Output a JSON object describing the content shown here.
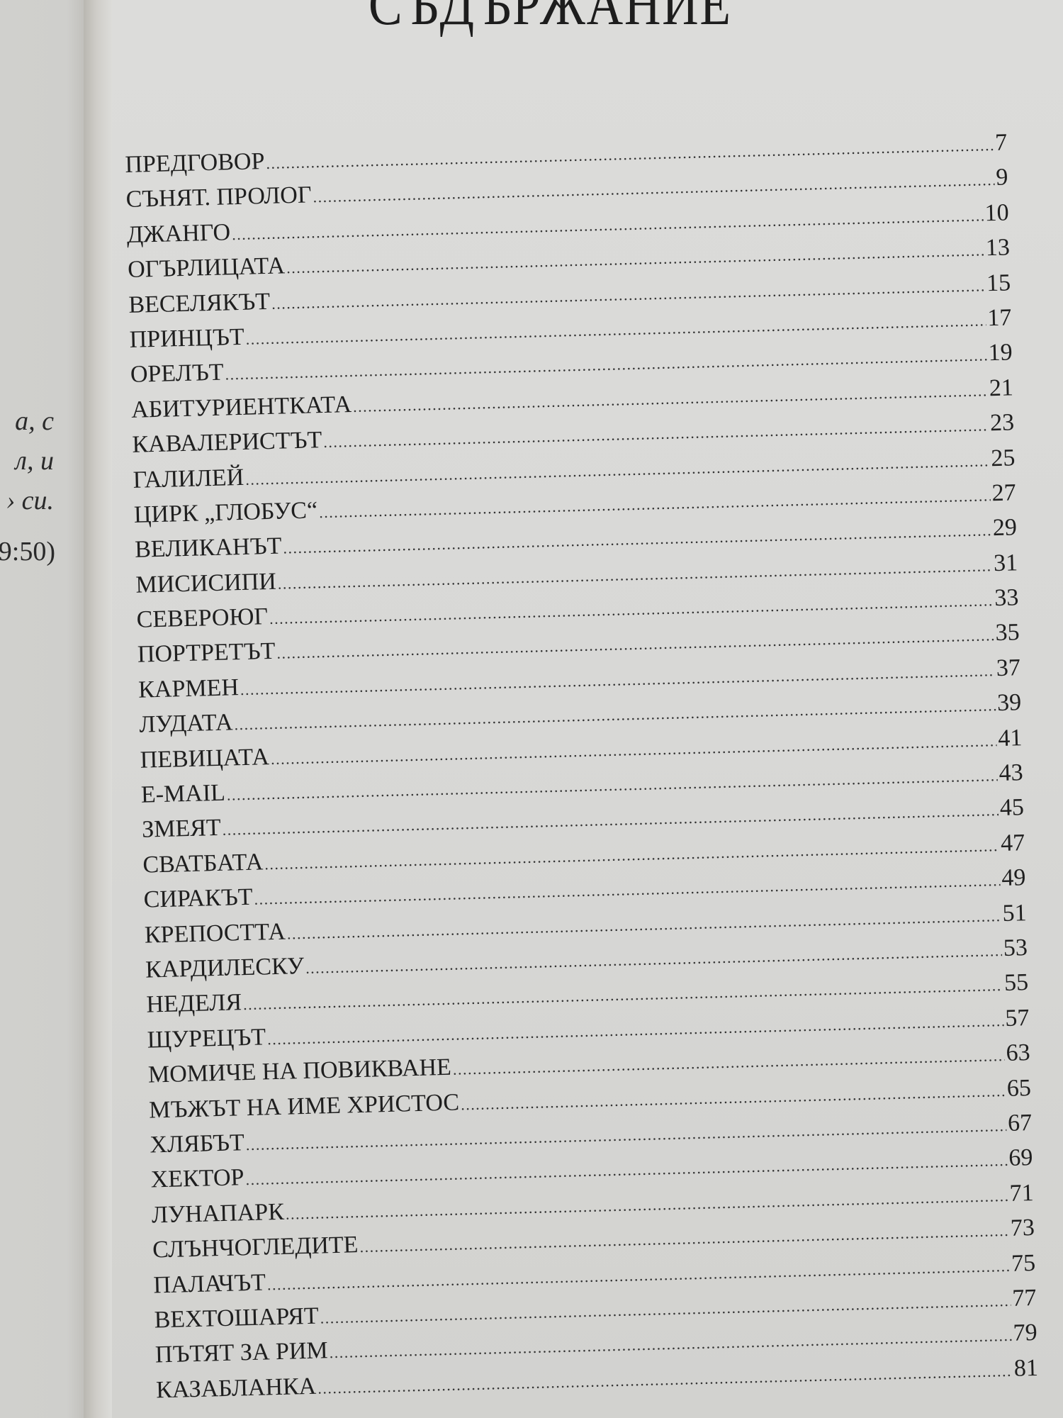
{
  "left_page": {
    "fragments": [
      "а, с",
      "л, и",
      "› си.",
      "9:50)"
    ]
  },
  "title": "СЪДЪРЖАНИЕ",
  "toc": [
    {
      "title": "ПРЕДГОВОР",
      "page": "7"
    },
    {
      "title": "СЪНЯТ. ПРОЛОГ",
      "page": "9"
    },
    {
      "title": "ДЖАНГО",
      "page": "10"
    },
    {
      "title": "ОГЪРЛИЦАТА",
      "page": "13"
    },
    {
      "title": "ВЕСЕЛЯКЪТ",
      "page": "15"
    },
    {
      "title": "ПРИНЦЪТ",
      "page": "17"
    },
    {
      "title": "ОРЕЛЪТ",
      "page": "19"
    },
    {
      "title": "АБИТУРИЕНТКАТА",
      "page": "21"
    },
    {
      "title": "КАВАЛЕРИСТЪТ",
      "page": "23"
    },
    {
      "title": "ГАЛИЛЕЙ",
      "page": "25"
    },
    {
      "title": "ЦИРК „ГЛОБУС“",
      "page": "27"
    },
    {
      "title": "ВЕЛИКАНЪТ",
      "page": "29"
    },
    {
      "title": "МИСИСИПИ",
      "page": "31"
    },
    {
      "title": "СЕВЕРОЮГ",
      "page": "33"
    },
    {
      "title": "ПОРТРЕТЪТ",
      "page": "35"
    },
    {
      "title": "КАРМЕН",
      "page": "37"
    },
    {
      "title": "ЛУДАТА",
      "page": "39"
    },
    {
      "title": "ПЕВИЦАТА",
      "page": "41"
    },
    {
      "title": "E-MAIL",
      "page": "43"
    },
    {
      "title": "ЗМЕЯТ",
      "page": "45"
    },
    {
      "title": "СВАТБАТА",
      "page": "47"
    },
    {
      "title": "СИРАКЪТ",
      "page": "49"
    },
    {
      "title": "КРЕПОСТТА",
      "page": "51"
    },
    {
      "title": "КАРДИЛЕСКУ",
      "page": "53"
    },
    {
      "title": "НЕДЕЛЯ",
      "page": "55"
    },
    {
      "title": "ЩУРЕЦЪТ",
      "page": "57"
    },
    {
      "title": "МОМИЧЕ НА ПОВИКВАНЕ",
      "page": "63"
    },
    {
      "title": "МЪЖЪТ НА ИМЕ ХРИСТОС",
      "page": "65"
    },
    {
      "title": "ХЛЯБЪТ",
      "page": "67"
    },
    {
      "title": "ХЕКТОР",
      "page": "69"
    },
    {
      "title": "ЛУНАПАРК",
      "page": "71"
    },
    {
      "title": "СЛЪНЧОГЛЕДИТЕ",
      "page": "73"
    },
    {
      "title": "ПАЛАЧЪТ",
      "page": "75"
    },
    {
      "title": "ВЕХТОШАРЯТ",
      "page": "77"
    },
    {
      "title": "ПЪТЯТ ЗА РИМ",
      "page": "79"
    },
    {
      "title": "КАЗАБЛАНКА",
      "page": "81"
    }
  ]
}
